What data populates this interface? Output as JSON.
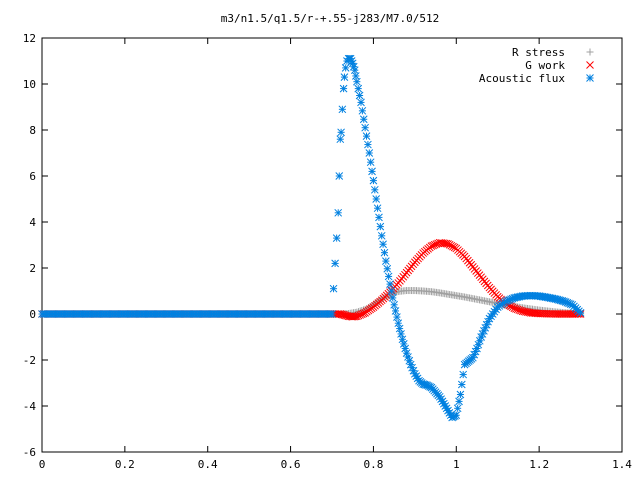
{
  "chart_data": {
    "type": "scatter",
    "title": "m3/n1.5/q1.5/r-+.55-j283/M7.0/512",
    "xlabel": "",
    "ylabel": "",
    "xlim": [
      0,
      1.4
    ],
    "ylim": [
      -6,
      12
    ],
    "x_ticks": [
      "0",
      "0.2",
      "0.4",
      "0.6",
      "0.8",
      "1",
      "1.2",
      "1.4"
    ],
    "y_ticks": [
      "-6",
      "-4",
      "-2",
      "0",
      "2",
      "4",
      "6",
      "8",
      "10",
      "12"
    ],
    "grid": false,
    "legend_position": "top-right",
    "series": [
      {
        "name": "R stress",
        "marker": "plus",
        "color": "#a0a0a0",
        "points": [
          [
            0.0,
            0.0
          ],
          [
            0.1,
            0.0
          ],
          [
            0.2,
            0.0
          ],
          [
            0.3,
            0.0
          ],
          [
            0.4,
            0.0
          ],
          [
            0.5,
            0.0
          ],
          [
            0.6,
            0.0
          ],
          [
            0.7,
            0.0
          ],
          [
            0.72,
            0.0
          ],
          [
            0.74,
            0.02
          ],
          [
            0.76,
            0.08
          ],
          [
            0.78,
            0.2
          ],
          [
            0.8,
            0.4
          ],
          [
            0.82,
            0.65
          ],
          [
            0.84,
            0.85
          ],
          [
            0.86,
            0.98
          ],
          [
            0.88,
            1.02
          ],
          [
            0.9,
            1.02
          ],
          [
            0.92,
            1.0
          ],
          [
            0.94,
            0.97
          ],
          [
            0.96,
            0.92
          ],
          [
            0.98,
            0.86
          ],
          [
            1.0,
            0.8
          ],
          [
            1.02,
            0.74
          ],
          [
            1.04,
            0.67
          ],
          [
            1.06,
            0.6
          ],
          [
            1.08,
            0.53
          ],
          [
            1.1,
            0.46
          ],
          [
            1.12,
            0.39
          ],
          [
            1.14,
            0.33
          ],
          [
            1.16,
            0.27
          ],
          [
            1.18,
            0.22
          ],
          [
            1.2,
            0.17
          ],
          [
            1.22,
            0.13
          ],
          [
            1.24,
            0.09
          ],
          [
            1.26,
            0.06
          ],
          [
            1.28,
            0.03
          ],
          [
            1.3,
            0.01
          ]
        ]
      },
      {
        "name": "G work",
        "marker": "cross",
        "color": "#ff0000",
        "points": [
          [
            0.0,
            0.0
          ],
          [
            0.1,
            0.0
          ],
          [
            0.2,
            0.0
          ],
          [
            0.3,
            0.0
          ],
          [
            0.4,
            0.0
          ],
          [
            0.5,
            0.0
          ],
          [
            0.6,
            0.0
          ],
          [
            0.7,
            0.0
          ],
          [
            0.72,
            0.0
          ],
          [
            0.73,
            -0.05
          ],
          [
            0.74,
            -0.1
          ],
          [
            0.75,
            -0.12
          ],
          [
            0.76,
            -0.1
          ],
          [
            0.78,
            0.05
          ],
          [
            0.8,
            0.3
          ],
          [
            0.82,
            0.6
          ],
          [
            0.84,
            0.95
          ],
          [
            0.86,
            1.35
          ],
          [
            0.88,
            1.8
          ],
          [
            0.9,
            2.25
          ],
          [
            0.92,
            2.65
          ],
          [
            0.94,
            2.95
          ],
          [
            0.96,
            3.1
          ],
          [
            0.98,
            3.05
          ],
          [
            1.0,
            2.85
          ],
          [
            1.02,
            2.5
          ],
          [
            1.04,
            2.05
          ],
          [
            1.06,
            1.6
          ],
          [
            1.08,
            1.15
          ],
          [
            1.1,
            0.75
          ],
          [
            1.12,
            0.45
          ],
          [
            1.14,
            0.25
          ],
          [
            1.16,
            0.12
          ],
          [
            1.18,
            0.05
          ],
          [
            1.2,
            0.02
          ],
          [
            1.24,
            0.0
          ],
          [
            1.28,
            0.0
          ],
          [
            1.3,
            0.0
          ]
        ]
      },
      {
        "name": "Acoustic flux",
        "marker": "star",
        "color": "#0080e0",
        "points": [
          [
            0.0,
            0.0
          ],
          [
            0.1,
            0.0
          ],
          [
            0.2,
            0.0
          ],
          [
            0.3,
            0.0
          ],
          [
            0.4,
            0.0
          ],
          [
            0.5,
            0.0
          ],
          [
            0.6,
            0.0
          ],
          [
            0.7,
            0.0
          ],
          [
            0.715,
            4.4
          ],
          [
            0.72,
            7.6
          ],
          [
            0.722,
            7.9
          ],
          [
            0.725,
            8.9
          ],
          [
            0.728,
            9.8
          ],
          [
            0.73,
            10.3
          ],
          [
            0.733,
            10.7
          ],
          [
            0.736,
            11.0
          ],
          [
            0.74,
            11.1
          ],
          [
            0.745,
            11.1
          ],
          [
            0.75,
            10.9
          ],
          [
            0.755,
            10.6
          ],
          [
            0.76,
            10.1
          ],
          [
            0.77,
            9.2
          ],
          [
            0.78,
            8.1
          ],
          [
            0.79,
            7.0
          ],
          [
            0.8,
            5.8
          ],
          [
            0.81,
            4.6
          ],
          [
            0.82,
            3.4
          ],
          [
            0.83,
            2.3
          ],
          [
            0.84,
            1.3
          ],
          [
            0.85,
            0.4
          ],
          [
            0.86,
            -0.4
          ],
          [
            0.87,
            -1.1
          ],
          [
            0.88,
            -1.7
          ],
          [
            0.89,
            -2.2
          ],
          [
            0.9,
            -2.6
          ],
          [
            0.91,
            -2.9
          ],
          [
            0.92,
            -3.05
          ],
          [
            0.93,
            -3.1
          ],
          [
            0.94,
            -3.2
          ],
          [
            0.95,
            -3.4
          ],
          [
            0.96,
            -3.6
          ],
          [
            0.97,
            -3.9
          ],
          [
            0.98,
            -4.2
          ],
          [
            0.99,
            -4.5
          ],
          [
            1.0,
            -4.4
          ],
          [
            1.01,
            -3.5
          ],
          [
            1.02,
            -2.2
          ],
          [
            1.03,
            -2.05
          ],
          [
            1.04,
            -1.9
          ],
          [
            1.05,
            -1.5
          ],
          [
            1.06,
            -1.0
          ],
          [
            1.07,
            -0.6
          ],
          [
            1.08,
            -0.2
          ],
          [
            1.1,
            0.3
          ],
          [
            1.12,
            0.55
          ],
          [
            1.14,
            0.7
          ],
          [
            1.16,
            0.78
          ],
          [
            1.18,
            0.8
          ],
          [
            1.2,
            0.78
          ],
          [
            1.22,
            0.72
          ],
          [
            1.24,
            0.65
          ],
          [
            1.26,
            0.55
          ],
          [
            1.28,
            0.4
          ],
          [
            1.3,
            0.05
          ]
        ]
      }
    ]
  }
}
